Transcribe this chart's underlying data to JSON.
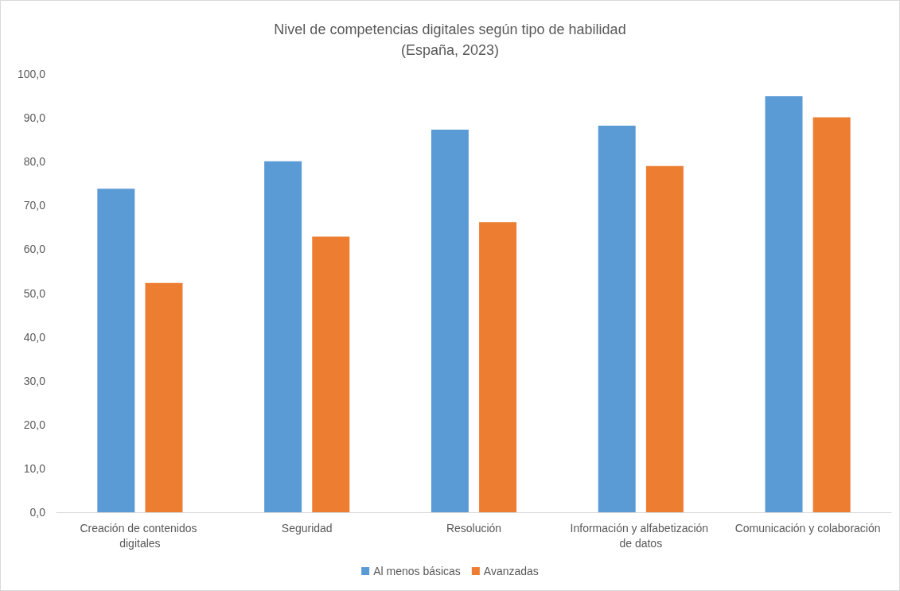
{
  "chart_data": {
    "type": "bar",
    "title": "Nivel de competencias digitales según tipo de habilidad\n(España, 2023)",
    "categories": [
      "Creación de contenidos digitales",
      "Seguridad",
      "Resolución",
      "Información y alfabetización de datos",
      "Comunicación y colaboración"
    ],
    "series": [
      {
        "name": "Al menos básicas",
        "color": "#5b9bd5",
        "values": [
          73.8,
          80.1,
          87.3,
          88.2,
          94.9
        ]
      },
      {
        "name": "Avanzadas",
        "color": "#ed7d31",
        "values": [
          52.3,
          62.9,
          66.2,
          79.0,
          90.1
        ]
      }
    ],
    "ylim": [
      0,
      100
    ],
    "yticks": [
      {
        "value": 0,
        "label": "0,0"
      },
      {
        "value": 10,
        "label": "10,0"
      },
      {
        "value": 20,
        "label": "20,0"
      },
      {
        "value": 30,
        "label": "30,0"
      },
      {
        "value": 40,
        "label": "40,0"
      },
      {
        "value": 50,
        "label": "50,0"
      },
      {
        "value": 60,
        "label": "60,0"
      },
      {
        "value": 70,
        "label": "70,0"
      },
      {
        "value": 80,
        "label": "80,0"
      },
      {
        "value": 90,
        "label": "90,0"
      },
      {
        "value": 100,
        "label": "100,0"
      }
    ],
    "grid": false,
    "legend": "bottom"
  }
}
